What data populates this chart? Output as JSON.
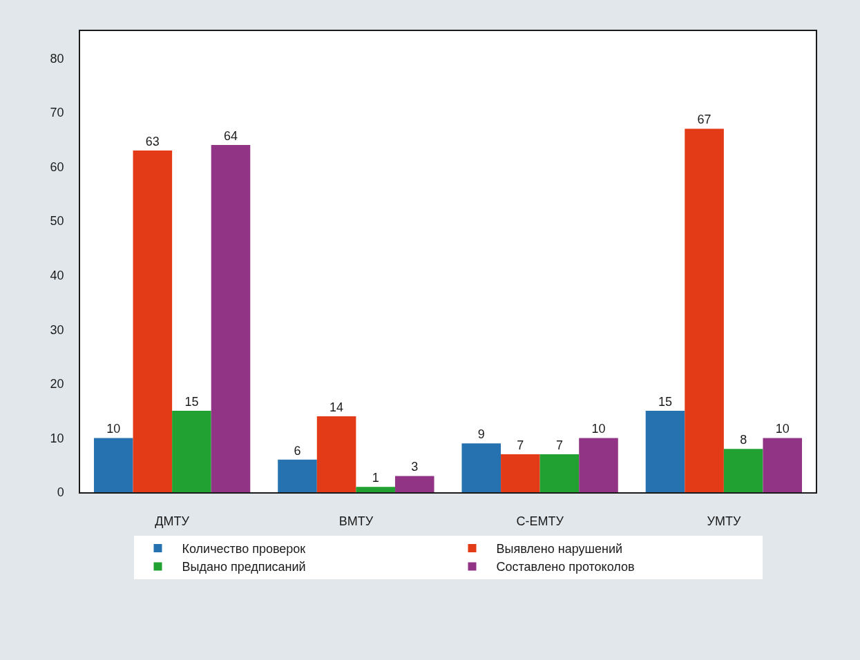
{
  "chart_data": {
    "type": "bar",
    "categories": [
      "ДМТУ",
      "ВМТУ",
      "С-ЕМТУ",
      "УМТУ"
    ],
    "series": [
      {
        "name": "Количество проверок",
        "color": "#2672b0",
        "values": [
          10,
          6,
          9,
          15
        ]
      },
      {
        "name": "Выявлено нарушений",
        "color": "#e33a18",
        "values": [
          63,
          14,
          7,
          67
        ]
      },
      {
        "name": "Выдано предписаний",
        "color": "#21a131",
        "values": [
          15,
          1,
          7,
          8
        ]
      },
      {
        "name": "Составлено протоколов",
        "color": "#923486",
        "values": [
          64,
          3,
          10,
          10
        ]
      }
    ],
    "ylim": [
      0,
      85
    ],
    "yticks": [
      0,
      10,
      20,
      30,
      40,
      50,
      60,
      70,
      80
    ],
    "data_labels": true,
    "legend": "bottom"
  }
}
